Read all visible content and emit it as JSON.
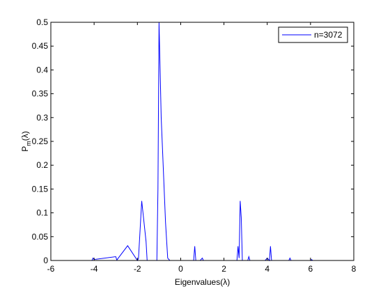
{
  "chart_data": {
    "type": "line",
    "title": "",
    "xlabel": "Eigenvalues(λ)",
    "ylabel": {
      "base": "P",
      "sub": "m",
      "suffix": "(λ)"
    },
    "xlim": [
      -6,
      8
    ],
    "ylim": [
      0,
      0.5
    ],
    "xticks": [
      -6,
      -4,
      -2,
      0,
      2,
      4,
      6,
      8
    ],
    "xtick_labels": [
      "-6",
      "-4",
      "-2",
      "0",
      "2",
      "4",
      "6",
      "8"
    ],
    "yticks": [
      0,
      0.05,
      0.1,
      0.15,
      0.2,
      0.25,
      0.3,
      0.35,
      0.4,
      0.45,
      0.5
    ],
    "ytick_labels": [
      "0",
      "0.05",
      "0.1",
      "0.15",
      "0.2",
      "0.25",
      "0.3",
      "0.35",
      "0.4",
      "0.45",
      "0.5"
    ],
    "grid": false,
    "legend_position": "top-right",
    "series": [
      {
        "name": "n=3072",
        "color": "#0000ff",
        "x": [
          -4.1,
          -4.05,
          -4.0,
          -3.0,
          -2.95,
          -2.45,
          -2.0,
          -1.95,
          -1.8,
          -1.6,
          -1.55,
          -1.1,
          -1.05,
          -1.0,
          -0.9,
          -0.7,
          -0.6,
          -0.5,
          0.5,
          0.6,
          0.65,
          0.7,
          0.9,
          1.0,
          1.05,
          2.0,
          2.6,
          2.65,
          2.7,
          2.75,
          2.8,
          2.85,
          2.9,
          3.0,
          3.1,
          3.15,
          3.2,
          3.9,
          4.0,
          4.1,
          4.15,
          4.2,
          4.5,
          5.0,
          5.05,
          5.1,
          5.5,
          6.0,
          6.05,
          6.1,
          6.5,
          7.0
        ],
        "y": [
          0,
          0.005,
          0.002,
          0.008,
          0.001,
          0.031,
          0.0,
          0.004,
          0.125,
          0.04,
          0.0,
          0.0,
          0.15,
          0.5,
          0.3,
          0.08,
          0.005,
          0.0,
          0.0,
          0.0,
          0.03,
          0.0,
          0.0,
          0.005,
          0.0,
          0.0,
          0.0,
          0.03,
          0.005,
          0.125,
          0.09,
          0.0,
          0.0,
          0.0,
          0.0,
          0.008,
          0.0,
          0.0,
          0.005,
          0.0,
          0.03,
          0.0,
          0.0,
          0.0,
          0.005,
          0.0,
          0.0,
          0.0,
          0.002,
          0.0,
          0.0,
          0.0
        ]
      }
    ]
  }
}
